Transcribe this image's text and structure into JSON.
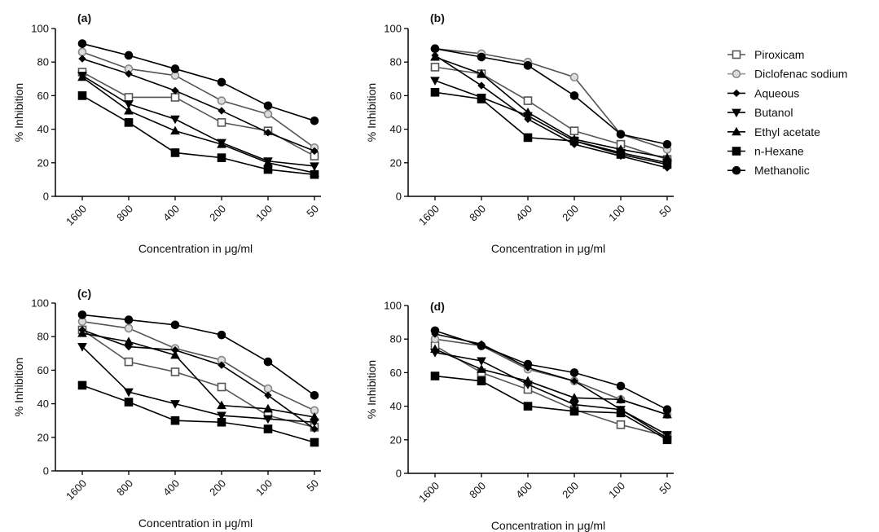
{
  "legend": {
    "placement": "right",
    "entries": [
      {
        "label": "Piroxicam",
        "marker": "open-square",
        "color": "#555555"
      },
      {
        "label": "Diclofenac sodium",
        "marker": "open-circle-gray",
        "color": "#999999"
      },
      {
        "label": "Aqueous",
        "marker": "diamond",
        "color": "#000000"
      },
      {
        "label": "Butanol",
        "marker": "triangle-down",
        "color": "#000000"
      },
      {
        "label": "Ethyl acetate",
        "marker": "triangle-up",
        "color": "#000000"
      },
      {
        "label": "n-Hexane",
        "marker": "square",
        "color": "#000000"
      },
      {
        "label": "Methanolic",
        "marker": "circle",
        "color": "#000000"
      }
    ]
  },
  "chart_data": [
    {
      "type": "line",
      "panel_label": "(a)",
      "categories": [
        "1600",
        "800",
        "400",
        "200",
        "100",
        "50"
      ],
      "xlabel": "Concentration in μg/ml",
      "ylabel": "% Inhibition",
      "ylim": [
        0,
        100
      ],
      "yticks": [
        "0",
        "20",
        "40",
        "60",
        "80",
        "100"
      ],
      "grid": false,
      "series": [
        {
          "name": "Piroxicam",
          "values": [
            74,
            59,
            59,
            44,
            39,
            24
          ]
        },
        {
          "name": "Diclofenac sodium",
          "values": [
            86,
            76,
            72,
            57,
            49,
            29
          ]
        },
        {
          "name": "Aqueous",
          "values": [
            82,
            73,
            63,
            51,
            38,
            27
          ]
        },
        {
          "name": "Butanol",
          "values": [
            72,
            55,
            46,
            32,
            21,
            18
          ]
        },
        {
          "name": "Ethyl acetate",
          "values": [
            71,
            51,
            39,
            31,
            20,
            14
          ]
        },
        {
          "name": "n-Hexane",
          "values": [
            60,
            44,
            26,
            23,
            16,
            13
          ]
        },
        {
          "name": "Methanolic",
          "values": [
            91,
            84,
            76,
            68,
            54,
            45
          ]
        }
      ]
    },
    {
      "type": "line",
      "panel_label": "(b)",
      "categories": [
        "1600",
        "800",
        "400",
        "200",
        "100",
        "50"
      ],
      "xlabel": "Concentration in μg/ml",
      "ylabel": "% Inhibition",
      "ylim": [
        0,
        100
      ],
      "yticks": [
        "0",
        "20",
        "40",
        "60",
        "80",
        "100"
      ],
      "grid": false,
      "series": [
        {
          "name": "Piroxicam",
          "values": [
            77,
            73,
            57,
            39,
            31,
            22
          ]
        },
        {
          "name": "Diclofenac sodium",
          "values": [
            88,
            85,
            80,
            71,
            37,
            28
          ]
        },
        {
          "name": "Aqueous",
          "values": [
            84,
            66,
            46,
            31,
            24,
            17
          ]
        },
        {
          "name": "Butanol",
          "values": [
            69,
            59,
            48,
            33,
            26,
            20
          ]
        },
        {
          "name": "Ethyl acetate",
          "values": [
            83,
            73,
            50,
            34,
            28,
            23
          ]
        },
        {
          "name": "n-Hexane",
          "values": [
            62,
            58,
            35,
            33,
            25,
            19
          ]
        },
        {
          "name": "Methanolic",
          "values": [
            88,
            83,
            78,
            60,
            37,
            31
          ]
        }
      ]
    },
    {
      "type": "line",
      "panel_label": "(c)",
      "categories": [
        "1600",
        "800",
        "400",
        "200",
        "100",
        "50"
      ],
      "xlabel": "Concentration in μg/ml",
      "ylabel": "% Inhibition",
      "ylim": [
        0,
        100
      ],
      "yticks": [
        "0",
        "20",
        "40",
        "60",
        "80",
        "100"
      ],
      "grid": false,
      "series": [
        {
          "name": "Piroxicam",
          "values": [
            84,
            65,
            59,
            50,
            33,
            26
          ]
        },
        {
          "name": "Diclofenac sodium",
          "values": [
            89,
            85,
            73,
            66,
            49,
            36
          ]
        },
        {
          "name": "Aqueous",
          "values": [
            84,
            74,
            72,
            63,
            45,
            25
          ]
        },
        {
          "name": "Butanol",
          "values": [
            74,
            47,
            40,
            33,
            31,
            29
          ]
        },
        {
          "name": "Ethyl acetate",
          "values": [
            82,
            77,
            69,
            39,
            37,
            32
          ]
        },
        {
          "name": "n-Hexane",
          "values": [
            51,
            41,
            30,
            29,
            25,
            17
          ]
        },
        {
          "name": "Methanolic",
          "values": [
            93,
            90,
            87,
            81,
            65,
            45
          ]
        }
      ]
    },
    {
      "type": "line",
      "panel_label": "(d)",
      "categories": [
        "1600",
        "800",
        "400",
        "200",
        "100",
        "50"
      ],
      "xlabel": "Concentration in μg/ml",
      "ylabel": "% Inhibition",
      "ylim": [
        0,
        100
      ],
      "yticks": [
        "0",
        "20",
        "40",
        "60",
        "80",
        "100"
      ],
      "grid": false,
      "series": [
        {
          "name": "Piroxicam",
          "values": [
            76,
            60,
            50,
            38,
            29,
            22
          ]
        },
        {
          "name": "Diclofenac sodium",
          "values": [
            80,
            76,
            62,
            55,
            44,
            35
          ]
        },
        {
          "name": "Aqueous",
          "values": [
            83,
            77,
            63,
            55,
            38,
            21
          ]
        },
        {
          "name": "Butanol",
          "values": [
            72,
            67,
            53,
            41,
            38,
            23
          ]
        },
        {
          "name": "Ethyl acetate",
          "values": [
            74,
            62,
            55,
            45,
            44,
            35
          ]
        },
        {
          "name": "n-Hexane",
          "values": [
            58,
            55,
            40,
            37,
            36,
            20
          ]
        },
        {
          "name": "Methanolic",
          "values": [
            85,
            76,
            65,
            60,
            52,
            38
          ]
        }
      ]
    }
  ]
}
